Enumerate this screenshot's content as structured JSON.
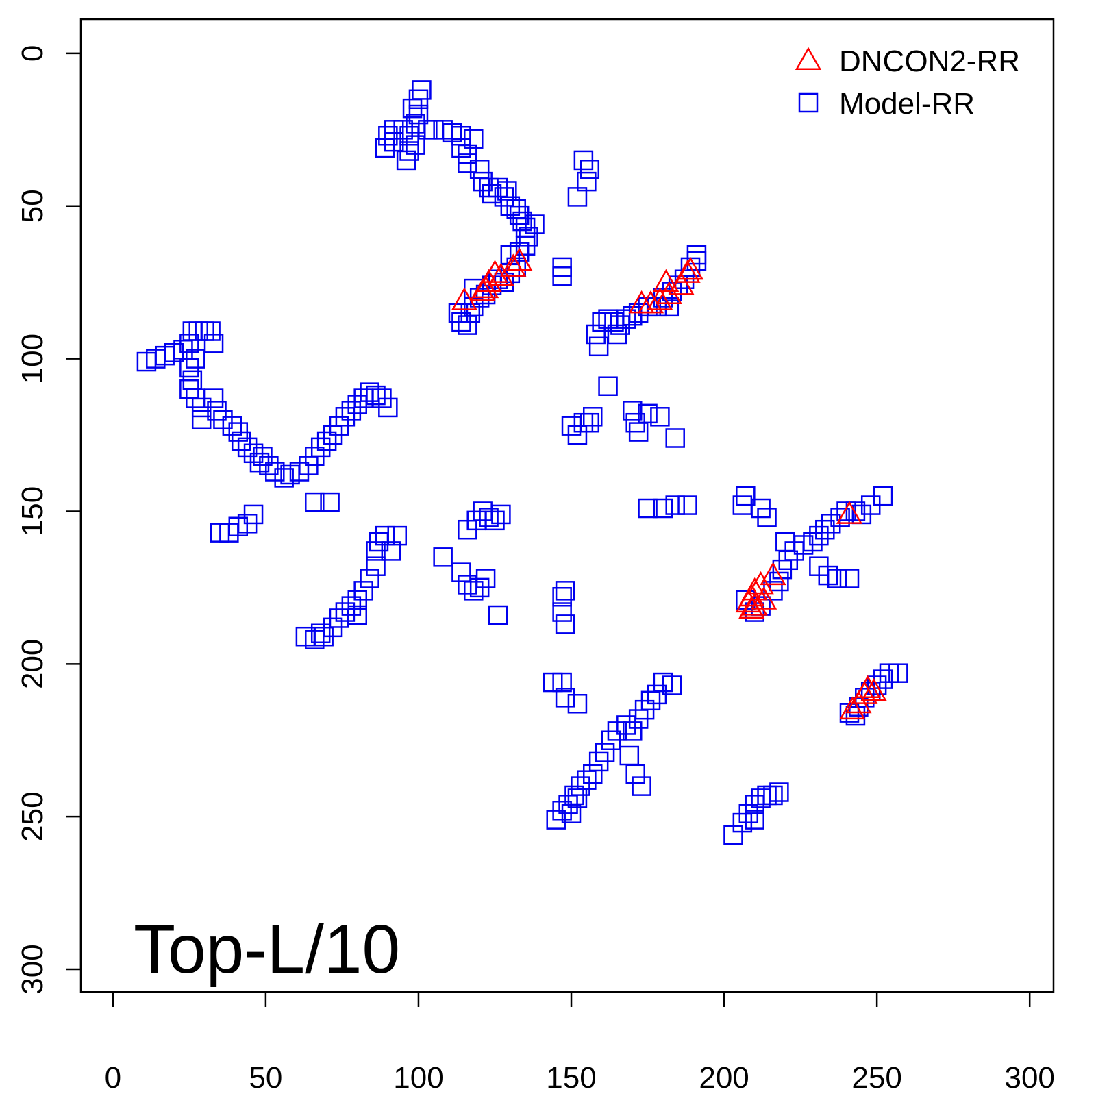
{
  "chart_data": {
    "type": "scatter",
    "annotation": "Top-L/10",
    "xlim": [
      -10.5,
      307.8
    ],
    "ylim": [
      307.4,
      -11.2
    ],
    "xticks": [
      0,
      50,
      100,
      150,
      200,
      250,
      300
    ],
    "yticks": [
      0,
      50,
      100,
      150,
      200,
      250,
      300
    ],
    "legend": "topright",
    "series": [
      {
        "name": "DNCON2-RR",
        "color": "#ff0000",
        "marker": "triangle",
        "x": [
          115,
          121,
          122,
          123,
          125,
          127,
          131,
          133,
          173,
          176,
          179,
          181,
          182,
          186,
          188,
          189,
          241,
          216,
          212,
          210,
          209,
          208,
          210,
          213,
          209,
          242,
          244,
          246,
          247,
          249
        ],
        "y": [
          81,
          78,
          77,
          75,
          72,
          73,
          70,
          68,
          82,
          82,
          81,
          75,
          79,
          76,
          72,
          71,
          151,
          171,
          174,
          176,
          178,
          180,
          181,
          179,
          182,
          215,
          213,
          210,
          208,
          209
        ]
      },
      {
        "name": "Model-RR",
        "color": "#0000ee",
        "marker": "square",
        "x": [
          95,
          97,
          99,
          100,
          101,
          100,
          98,
          99,
          97,
          96,
          92,
          90,
          89,
          92,
          103,
          105,
          108,
          111,
          114,
          114,
          116,
          118,
          116,
          120,
          121,
          123,
          124,
          126,
          128,
          129,
          130,
          132,
          133,
          134,
          135,
          136,
          138,
          135,
          133,
          130,
          132,
          113,
          114,
          116,
          117,
          118,
          120,
          122,
          124,
          126,
          128,
          130,
          118,
          158,
          160,
          162,
          164,
          166,
          168,
          170,
          172,
          175,
          178,
          180,
          182,
          183,
          185,
          187,
          189,
          191,
          191,
          159,
          165,
          154,
          156,
          155,
          152,
          147,
          147,
          11,
          14,
          17,
          20,
          23,
          25,
          26,
          28,
          27,
          25,
          26,
          25,
          27,
          29,
          29,
          33,
          34,
          36,
          39,
          41,
          42,
          44,
          46,
          48,
          49,
          51,
          53,
          56,
          58,
          61,
          64,
          66,
          68,
          70,
          72,
          74,
          76,
          78,
          80,
          82,
          84,
          86,
          88,
          90,
          30,
          33,
          32,
          35,
          38,
          41,
          44,
          46,
          66,
          71,
          63,
          66,
          69,
          72,
          74,
          76,
          78,
          80,
          82,
          84,
          86,
          86,
          87,
          89,
          91,
          93,
          68,
          80,
          150,
          152,
          154,
          156,
          157,
          162,
          170,
          171,
          172,
          175,
          179,
          184,
          108,
          114,
          116,
          118,
          120,
          122,
          116,
          119,
          121,
          123,
          125,
          127,
          126,
          147,
          148,
          147,
          148,
          175,
          180,
          184,
          188,
          206,
          207,
          212,
          214,
          207,
          210,
          212,
          216,
          218,
          219,
          221,
          223,
          226,
          229,
          231,
          233,
          235,
          238,
          240,
          243,
          245,
          248,
          252,
          231,
          234,
          237,
          241,
          220,
          145,
          147,
          149,
          151,
          153,
          155,
          157,
          159,
          161,
          163,
          165,
          168,
          170,
          172,
          174,
          176,
          178,
          180,
          183,
          144,
          147,
          148,
          152,
          169,
          171,
          173,
          150,
          152,
          203,
          206,
          208,
          210,
          212,
          214,
          216,
          218,
          210,
          241,
          244,
          246,
          248,
          250,
          252,
          254,
          257,
          243
        ],
        "y": [
          25,
          27,
          23,
          15,
          12,
          20,
          18,
          30,
          32,
          35,
          25,
          27,
          31,
          29,
          25,
          25,
          25,
          26,
          27,
          31,
          33,
          28,
          36,
          38,
          42,
          44,
          46,
          44,
          47,
          45,
          50,
          51,
          53,
          55,
          57,
          60,
          56,
          63,
          65,
          66,
          70,
          85,
          88,
          89,
          85,
          83,
          80,
          79,
          76,
          74,
          75,
          72,
          77,
          92,
          88,
          87,
          88,
          89,
          87,
          86,
          85,
          83,
          83,
          80,
          83,
          78,
          76,
          74,
          70,
          68,
          66,
          96,
          92,
          35,
          38,
          42,
          47,
          70,
          73,
          101,
          100,
          99,
          98,
          97,
          95,
          91,
          91,
          100,
          103,
          107,
          110,
          113,
          116,
          120,
          113,
          117,
          120,
          122,
          124,
          127,
          129,
          131,
          134,
          132,
          135,
          137,
          139,
          138,
          137,
          135,
          132,
          129,
          127,
          125,
          122,
          119,
          117,
          115,
          113,
          111,
          112,
          113,
          116,
          91,
          95,
          91,
          157,
          157,
          155,
          154,
          151,
          147,
          147,
          191,
          192,
          191,
          188,
          185,
          183,
          181,
          179,
          176,
          172,
          168,
          163,
          160,
          158,
          163,
          158,
          190,
          184,
          122,
          125,
          121,
          121,
          119,
          109,
          117,
          121,
          124,
          118,
          119,
          126,
          165,
          170,
          174,
          176,
          175,
          172,
          156,
          153,
          150,
          152,
          153,
          151,
          184,
          178,
          176,
          183,
          187,
          149,
          149,
          148,
          148,
          148,
          145,
          149,
          152,
          179,
          183,
          181,
          176,
          173,
          169,
          166,
          163,
          161,
          160,
          158,
          156,
          154,
          152,
          150,
          150,
          151,
          148,
          145,
          168,
          171,
          172,
          172,
          160,
          251,
          248,
          246,
          243,
          240,
          238,
          236,
          232,
          229,
          225,
          222,
          220,
          222,
          218,
          215,
          212,
          210,
          206,
          207,
          206,
          206,
          211,
          213,
          230,
          236,
          240,
          249,
          244,
          256,
          252,
          249,
          246,
          244,
          243,
          243,
          242,
          251,
          216,
          214,
          211,
          209,
          207,
          205,
          203,
          203,
          217
        ]
      }
    ]
  }
}
